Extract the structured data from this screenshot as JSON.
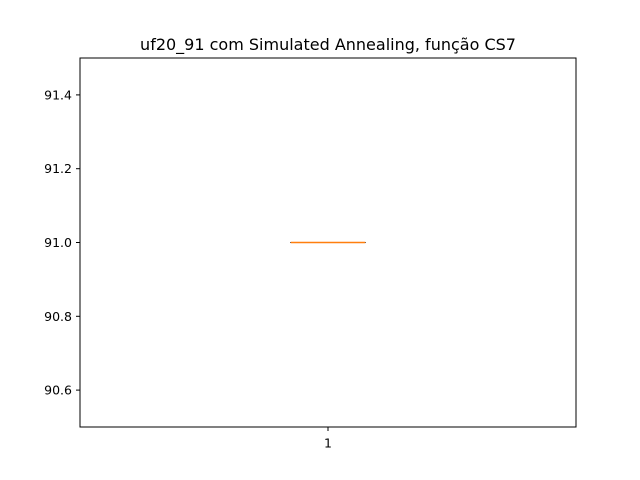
{
  "chart_data": {
    "type": "box",
    "title": "uf20_91 com Simulated Annealing, função CS7",
    "xlabel": "",
    "ylabel": "",
    "categories": [
      "1"
    ],
    "ylim": [
      90.5,
      91.5
    ],
    "yticks": [
      90.6,
      90.8,
      91.0,
      91.2,
      91.4
    ],
    "ytick_labels": [
      "90.6",
      "90.8",
      "91.0",
      "91.2",
      "91.4"
    ],
    "boxes": [
      {
        "category": "1",
        "min": 91.0,
        "q1": 91.0,
        "median": 91.0,
        "q3": 91.0,
        "max": 91.0
      }
    ],
    "grid": false,
    "colors": {
      "box": "#000000",
      "median": "#ff7f0e"
    }
  }
}
